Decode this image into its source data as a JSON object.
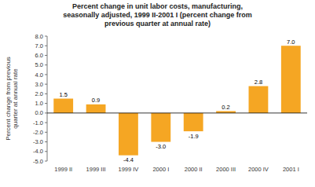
{
  "chart_data": {
    "type": "bar",
    "title": "Percent change in unit labor costs, manufacturing,\nseasonally adjusted, 1999 II-2001 I (percent change from\nprevious quarter at annual rate)",
    "ylabel": "Percent change from previous\nquarter at annual rate",
    "categories": [
      "1999 II",
      "1999 III",
      "1999 IV",
      "2000 I",
      "2000 II",
      "2000 III",
      "2000 IV",
      "2001 I"
    ],
    "values": [
      1.5,
      0.9,
      -4.4,
      -3.0,
      -1.9,
      0.2,
      2.8,
      7.0
    ],
    "value_labels": [
      "1.5",
      "0.9",
      "-4.4",
      "-3.0",
      "-1.9",
      "0.2",
      "2.8",
      "7.0"
    ],
    "data_labels": true,
    "color": "#F5A623",
    "ylim": [
      -5.0,
      8.0
    ],
    "yticks": [
      {
        "value": -5,
        "label": "-5.0"
      },
      {
        "value": -4,
        "label": "-4.0"
      },
      {
        "value": -3,
        "label": "-3.0"
      },
      {
        "value": -2,
        "label": "-2.0"
      },
      {
        "value": -1,
        "label": "-1.0"
      },
      {
        "value": 0,
        "label": "0.0"
      },
      {
        "value": 1,
        "label": "1.0"
      },
      {
        "value": 2,
        "label": "2.0"
      },
      {
        "value": 3,
        "label": "3.0"
      },
      {
        "value": 4,
        "label": "4.0"
      },
      {
        "value": 5,
        "label": "5.0"
      },
      {
        "value": 6,
        "label": "6.0"
      },
      {
        "value": 7,
        "label": "7.0"
      },
      {
        "value": 8,
        "label": "8.0"
      }
    ],
    "grid": false
  }
}
